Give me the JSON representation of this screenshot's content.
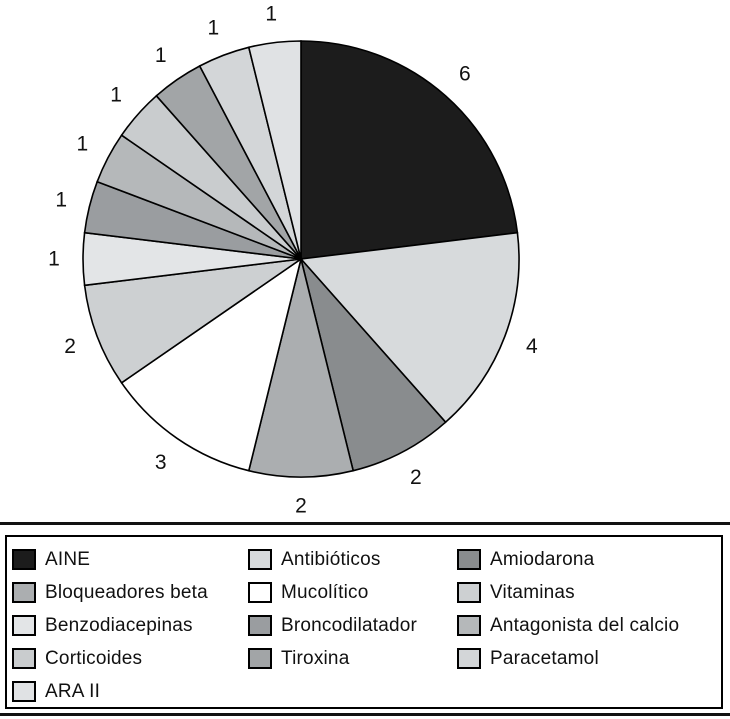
{
  "figure": {
    "background_color": "#ffffff",
    "border_rule_color": "#111111"
  },
  "chart_data": {
    "type": "pie",
    "title": "",
    "total": 26,
    "start_angle_deg": 0,
    "direction": "clockwise",
    "value_labels_shown": true,
    "stroke_color": "#000000",
    "slices": [
      {
        "label": "AINE",
        "value": 6,
        "color": "#1c1c1c"
      },
      {
        "label": "Antibióticos",
        "value": 4,
        "color": "#d7dadc"
      },
      {
        "label": "Amiodarona",
        "value": 2,
        "color": "#898c8e"
      },
      {
        "label": "Bloqueadores beta",
        "value": 2,
        "color": "#abaeb0"
      },
      {
        "label": "Mucolítico",
        "value": 3,
        "color": "#ffffff"
      },
      {
        "label": "Vitaminas",
        "value": 2,
        "color": "#cdd0d2"
      },
      {
        "label": "Benzodiacepinas",
        "value": 1,
        "color": "#e3e5e7"
      },
      {
        "label": "Broncodilatador",
        "value": 1,
        "color": "#9a9da0"
      },
      {
        "label": "Antagonista del calcio",
        "value": 1,
        "color": "#b5b8ba"
      },
      {
        "label": "Corticoides",
        "value": 1,
        "color": "#c9ccce"
      },
      {
        "label": "Tiroxina",
        "value": 1,
        "color": "#a2a5a7"
      },
      {
        "label": "Paracetamol",
        "value": 1,
        "color": "#d3d6d8"
      },
      {
        "label": "ARA II",
        "value": 1,
        "color": "#e0e2e4"
      }
    ],
    "legend_position": "bottom",
    "legend_columns": [
      [
        "AINE",
        "Bloqueadores beta",
        "Benzodiacepinas",
        "Corticoides",
        "ARA II"
      ],
      [
        "Antibióticos",
        "Mucolítico",
        "Broncodilatador",
        "Tiroxina"
      ],
      [
        "Amiodarona",
        "Vitaminas",
        "Antagonista del calcio",
        "Paracetamol"
      ]
    ]
  }
}
